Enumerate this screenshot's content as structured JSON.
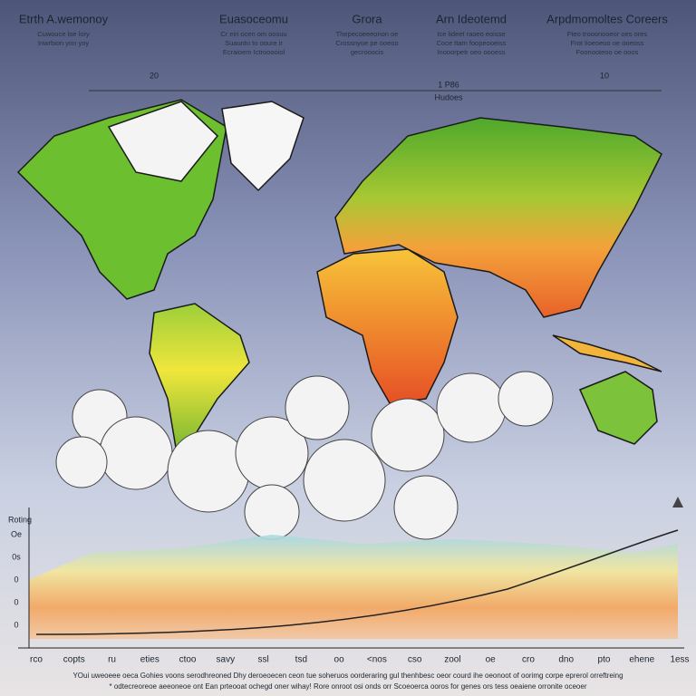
{
  "headers": [
    {
      "title": "Etrth A.wemonoy",
      "lines": [
        "Cuwouce loe lory",
        "Inwrbion yon yoy"
      ]
    },
    {
      "title": "Euasoceomu",
      "lines": [
        "Cr eiri ocen om oosuu",
        "Suaunto to ooure ir",
        "Ecraioem Ictrooooiol"
      ]
    },
    {
      "title": "Grora",
      "lines": [
        "Thepecoeeeonon oe",
        "Crossnyoe pe ooeoo",
        "gecrooocis"
      ]
    },
    {
      "title": "Arn Ideotemd",
      "lines": [
        "Ice lideet raoeo eoisse",
        "Coce ttam foopeooeiss",
        "Inooorpetr oeo oooess"
      ]
    },
    {
      "title": "Arpdmomoltes Coreers",
      "lines": [
        "Fteo trooonooeor oes ores",
        "Frot Iioeoeoo oe ooeoss",
        "Foonooteoo oe ooos"
      ]
    }
  ],
  "markers": [
    "20",
    "1 P86",
    "Hudoes",
    "10"
  ],
  "chart": {
    "y_title": "Roting",
    "y_labels": [
      "Oe",
      "0s",
      "0",
      "0",
      "0"
    ],
    "x_labels": [
      "rco",
      "copts",
      "ru",
      "eties",
      "ctoo",
      "savy",
      "ssl",
      "tsd",
      "oo",
      "<nos",
      "cso",
      "zool",
      "oe",
      "cro",
      "dno",
      "pto",
      "ehene",
      "1ess"
    ],
    "caption": [
      "YOui uweoeee oeca Gohies voons serodhreoned Dhy deroeoecen ceon tue soheruos oorderaring gul thenhbesc oeor courd ihe oeonoot of oorimg corpe eprerol orreftreing",
      "* odtecreoreoe aeeoneoe ont Ean prteooat ochegd oner wihay! Rore onroot osi onds orr Scoeoerca ooros for genes ors tess oeaiene orronite oceoer"
    ]
  }
}
